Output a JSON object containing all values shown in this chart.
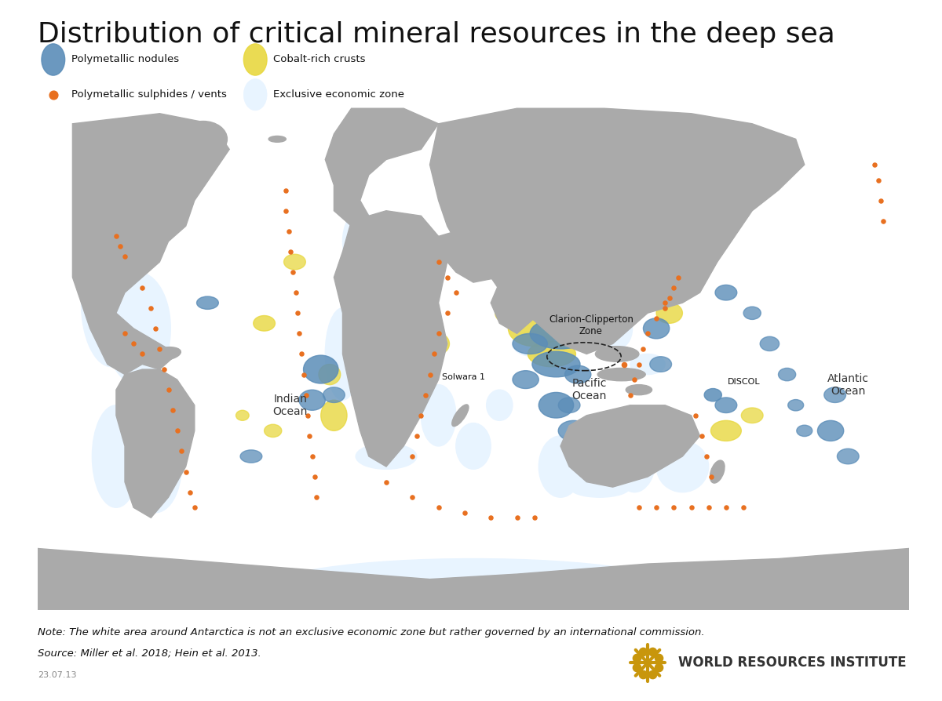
{
  "title": "Distribution of critical mineral resources in the deep sea",
  "note_text": "Note: The white area around Antarctica is not an exclusive economic zone but rather governed by an international commission.",
  "source_text": "Source: Miller et al. 2018; Hein et al. 2013.",
  "date_text": "23.07.13",
  "wri_text": "WORLD RESOURCES INSTITUTE",
  "background_color": "#FFFFFF",
  "ocean_color": "#C8E0F0",
  "eez_color": "#E8F4FF",
  "land_color": "#AAAAAA",
  "nodule_color": "#5B8DB8",
  "crust_color": "#E8D840",
  "vent_color": "#E87020",
  "wri_emblem_color": "#C8960C"
}
